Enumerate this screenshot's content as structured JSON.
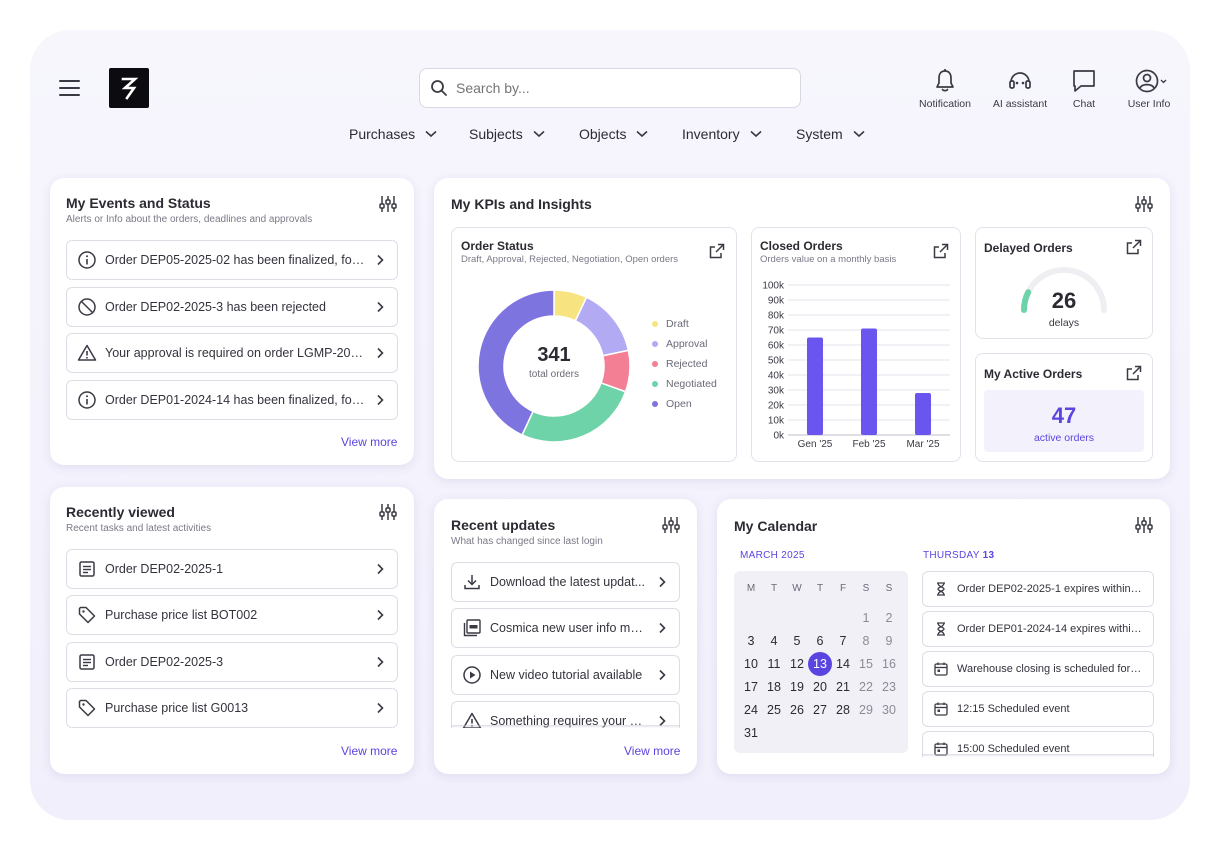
{
  "header": {
    "logo_glyph": "S",
    "search_placeholder": "Search by...",
    "actions": [
      {
        "label": "Notification",
        "icon": "bell-icon"
      },
      {
        "label": "AI assistant",
        "icon": "headset-icon"
      },
      {
        "label": "Chat",
        "icon": "chat-icon"
      },
      {
        "label": "User Info",
        "icon": "user-icon"
      }
    ]
  },
  "nav": [
    "Purchases",
    "Subjects",
    "Objects",
    "Inventory",
    "System"
  ],
  "events_card": {
    "title": "My Events and Status",
    "subtitle": "Alerts or Info about the orders, deadlines and approvals",
    "items": [
      {
        "text": "Order DEP05-2025-02 has been finalized, for...",
        "icon": "info-icon"
      },
      {
        "text": "Order DEP02-2025-3 has been rejected",
        "icon": "ban-icon"
      },
      {
        "text": "Your approval is required on order LGMP-202...",
        "icon": "warning-icon"
      },
      {
        "text": "Order DEP01-2024-14 has been finalized, for...",
        "icon": "info-icon"
      }
    ],
    "view_more": "View more"
  },
  "recent_card": {
    "title": "Recently viewed",
    "subtitle": "Recent tasks and latest activities",
    "items": [
      {
        "text": "Order DEP02-2025-1",
        "icon": "document-icon"
      },
      {
        "text": "Purchase price list BOT002",
        "icon": "tag-icon"
      },
      {
        "text": "Order DEP02-2025-3",
        "icon": "document-icon"
      },
      {
        "text": "Purchase price list G0013",
        "icon": "tag-icon"
      }
    ],
    "view_more": "View more"
  },
  "kpis": {
    "title": "My KPIs and Insights",
    "order_status": {
      "title": "Order Status",
      "subtitle": "Draft, Approval, Rejected, Negotiation, Open orders",
      "total": "341",
      "total_label": "total orders"
    },
    "closed_orders": {
      "title": "Closed Orders",
      "subtitle": "Orders value on a monthly basis"
    },
    "delayed": {
      "title": "Delayed Orders",
      "value": "26",
      "label": "delays"
    },
    "active": {
      "title": "My Active Orders",
      "value": "47",
      "label": "active orders"
    }
  },
  "chart_data": [
    {
      "type": "pie",
      "categories": [
        "Draft",
        "Approval",
        "Rejected",
        "Negotiated",
        "Open"
      ],
      "values": [
        24,
        50,
        30,
        90,
        147
      ],
      "colors": [
        "#f7e37f",
        "#b3aaf4",
        "#f27f93",
        "#6ed3a8",
        "#7d74e0"
      ],
      "legend_position": "right"
    },
    {
      "type": "bar",
      "categories": [
        "Gen '25",
        "Feb '25",
        "Mar '25"
      ],
      "values": [
        65000,
        71000,
        28000
      ],
      "yticks": [
        "0k",
        "10k",
        "20k",
        "30k",
        "40k",
        "50k",
        "60k",
        "70k",
        "80k",
        "90k",
        "100k"
      ],
      "ylim": [
        0,
        100000
      ],
      "grid": true,
      "color": "#6a56ef"
    }
  ],
  "updates_card": {
    "title": "Recent updates",
    "subtitle": "What has changed since last login",
    "items": [
      {
        "text": "Download the latest updat...",
        "icon": "download-icon"
      },
      {
        "text": "Cosmica new user info ma...",
        "icon": "pdf-icon"
      },
      {
        "text": "New video tutorial available",
        "icon": "play-icon"
      },
      {
        "text": "Something requires your a...",
        "icon": "warning-icon"
      }
    ],
    "view_more": "View more"
  },
  "calendar": {
    "title": "My Calendar",
    "month_label": "MARCH",
    "year_label": "2025",
    "dow": [
      "M",
      "T",
      "W",
      "T",
      "F",
      "S",
      "S"
    ],
    "selected_day_name": "THURSDAY",
    "selected_day_num": "13",
    "events": [
      {
        "text": "Order DEP02-2025-1 expires within 3...",
        "icon": "hourglass-icon"
      },
      {
        "text": "Order DEP01-2024-14 expires within...",
        "icon": "hourglass-icon"
      },
      {
        "text": "Warehouse closing is scheduled for to...",
        "icon": "calendar-icon"
      },
      {
        "text": "12:15 Scheduled event",
        "icon": "calendar-icon"
      },
      {
        "text": "15:00 Scheduled event",
        "icon": "calendar-icon"
      }
    ]
  }
}
